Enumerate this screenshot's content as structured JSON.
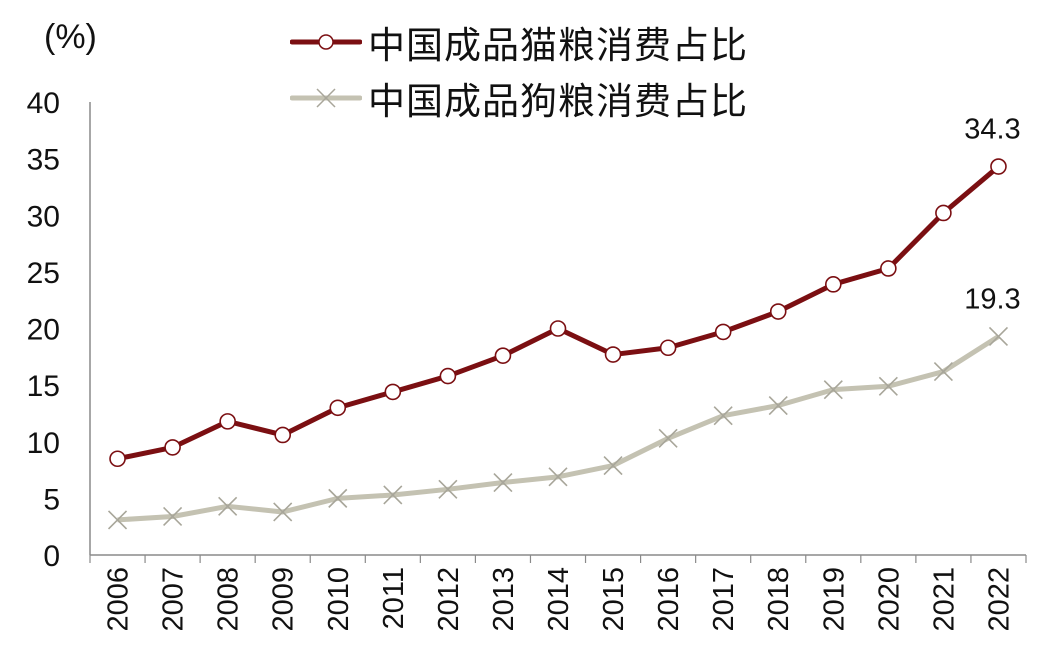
{
  "chart_data": {
    "type": "line",
    "title": "",
    "ylabel": "(%)",
    "xlabel": "",
    "ylim": [
      0,
      40
    ],
    "yticks": [
      0,
      5,
      10,
      15,
      20,
      25,
      30,
      35,
      40
    ],
    "grid": false,
    "legend_position": "top",
    "categories": [
      "2006",
      "2007",
      "2008",
      "2009",
      "2010",
      "2011",
      "2012",
      "2013",
      "2014",
      "2015",
      "2016",
      "2017",
      "2018",
      "2019",
      "2020",
      "2021",
      "2022"
    ],
    "series": [
      {
        "name": "中国成品猫粮消费占比",
        "color": "#7b0f12",
        "marker": "circle-open",
        "values": [
          8.5,
          9.5,
          11.8,
          10.6,
          13.0,
          14.4,
          15.8,
          17.6,
          20.0,
          17.7,
          18.3,
          19.7,
          21.5,
          23.9,
          25.3,
          30.2,
          34.3
        ],
        "end_label": "34.3"
      },
      {
        "name": "中国成品狗粮消费占比",
        "color": "#c4c2b2",
        "marker": "x",
        "values": [
          3.1,
          3.4,
          4.3,
          3.8,
          5.0,
          5.3,
          5.8,
          6.4,
          6.9,
          7.9,
          10.3,
          12.3,
          13.2,
          14.6,
          14.9,
          16.2,
          19.3
        ],
        "end_label": "19.3"
      }
    ]
  }
}
